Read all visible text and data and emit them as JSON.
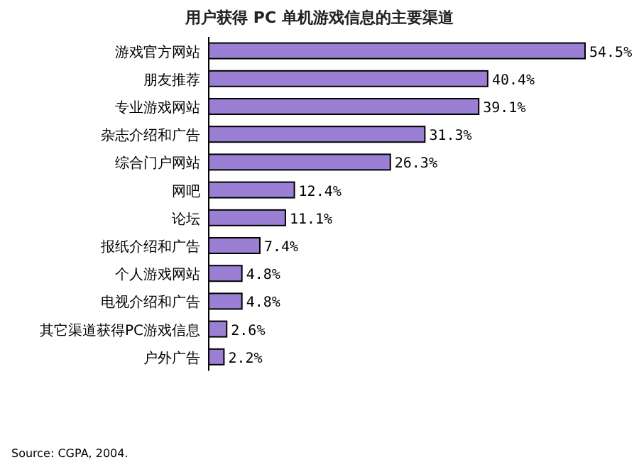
{
  "chart_data": {
    "type": "bar",
    "orientation": "horizontal",
    "title": "用户获得 PC 单机游戏信息的主要渠道",
    "categories": [
      "游戏官方网站",
      "朋友推荐",
      "专业游戏网站",
      "杂志介绍和广告",
      "综合门户网站",
      "网吧",
      "论坛",
      "报纸介绍和广告",
      "个人游戏网站",
      "电视介绍和广告",
      "其它渠道获得PC游戏信息",
      "户外广告"
    ],
    "values": [
      54.5,
      40.4,
      39.1,
      31.3,
      26.3,
      12.4,
      11.1,
      7.4,
      4.8,
      4.8,
      2.6,
      2.2
    ],
    "value_labels": [
      "54.5%",
      "40.4%",
      "39.1%",
      "31.3%",
      "26.3%",
      "12.4%",
      "11.1%",
      "7.4%",
      "4.8%",
      "4.8%",
      "2.6%",
      "2.2%"
    ],
    "color": "#9b7fd4",
    "annotations": [
      "Source: CGPA, 2004."
    ]
  }
}
